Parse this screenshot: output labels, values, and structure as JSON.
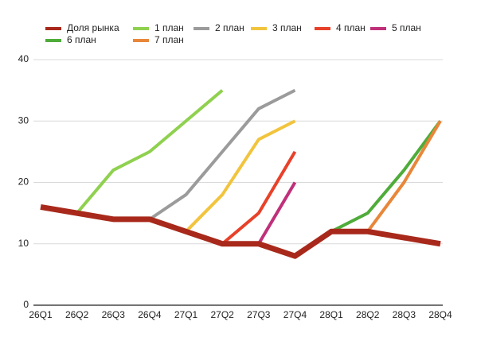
{
  "chart_data": {
    "type": "line",
    "categories": [
      "26Q1",
      "26Q2",
      "26Q3",
      "26Q4",
      "27Q1",
      "27Q2",
      "27Q3",
      "27Q4",
      "28Q1",
      "28Q2",
      "28Q3",
      "28Q4"
    ],
    "series": [
      {
        "name": "Доля рынка",
        "color": "#a8291b",
        "values": [
          16,
          15,
          14,
          14,
          12,
          10,
          10,
          8,
          12,
          12,
          11,
          10
        ]
      },
      {
        "name": "1 план",
        "color": "#8fd14f",
        "values": [
          null,
          15,
          22,
          25,
          30,
          35,
          null,
          null,
          null,
          null,
          null,
          null
        ]
      },
      {
        "name": "2 план",
        "color": "#9b9b9b",
        "values": [
          null,
          null,
          null,
          14,
          18,
          25,
          32,
          35,
          null,
          null,
          null,
          null
        ]
      },
      {
        "name": "3 план",
        "color": "#f2c43d",
        "values": [
          null,
          null,
          null,
          null,
          12,
          18,
          27,
          30,
          null,
          null,
          null,
          null
        ]
      },
      {
        "name": "4 план",
        "color": "#e8412a",
        "values": [
          null,
          null,
          null,
          null,
          null,
          10,
          15,
          25,
          null,
          null,
          null,
          null
        ]
      },
      {
        "name": "5 план",
        "color": "#c0307a",
        "values": [
          null,
          null,
          null,
          null,
          null,
          null,
          10,
          20,
          null,
          null,
          null,
          null
        ]
      },
      {
        "name": "6 план",
        "color": "#4fac3a",
        "values": [
          null,
          null,
          null,
          null,
          null,
          null,
          null,
          null,
          12,
          15,
          22,
          30
        ]
      },
      {
        "name": "7 план",
        "color": "#e8873a",
        "values": [
          null,
          null,
          null,
          null,
          null,
          null,
          null,
          null,
          null,
          12,
          20,
          30
        ]
      }
    ],
    "ylim": [
      0,
      40
    ],
    "yticks": [
      0,
      10,
      20,
      30,
      40
    ],
    "grid": true,
    "legend": "top"
  }
}
